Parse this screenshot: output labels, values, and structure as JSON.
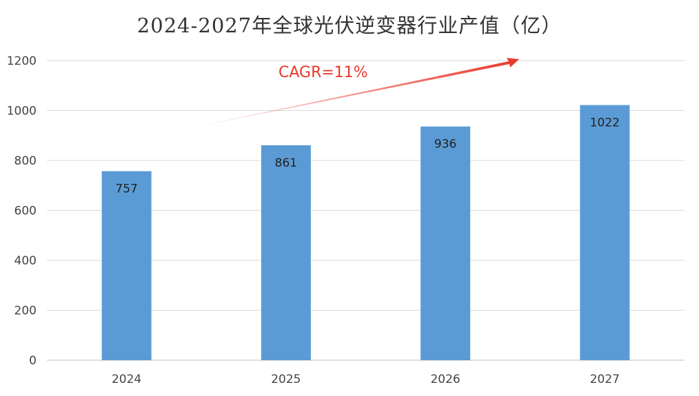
{
  "chart_data": {
    "type": "bar",
    "title": "2024-2027年全球光伏逆变器行业产值（亿）",
    "categories": [
      "2024",
      "2025",
      "2026",
      "2027"
    ],
    "values": [
      757,
      861,
      936,
      1022
    ],
    "data_labels": [
      "757",
      "861",
      "936",
      "1022"
    ],
    "y_ticks": [
      "0",
      "200",
      "400",
      "600",
      "800",
      "1000",
      "1200"
    ],
    "ylim": [
      0,
      1200
    ],
    "xlabel": "",
    "ylabel": "",
    "grid": true,
    "legend": "none",
    "annotation": {
      "text": "CAGR=11%",
      "type": "trend-arrow"
    },
    "colors": {
      "bar": "#5b9bd5",
      "annotation": "#e8382c",
      "grid": "#d9d9d9",
      "axis": "#bfbfbf"
    }
  }
}
